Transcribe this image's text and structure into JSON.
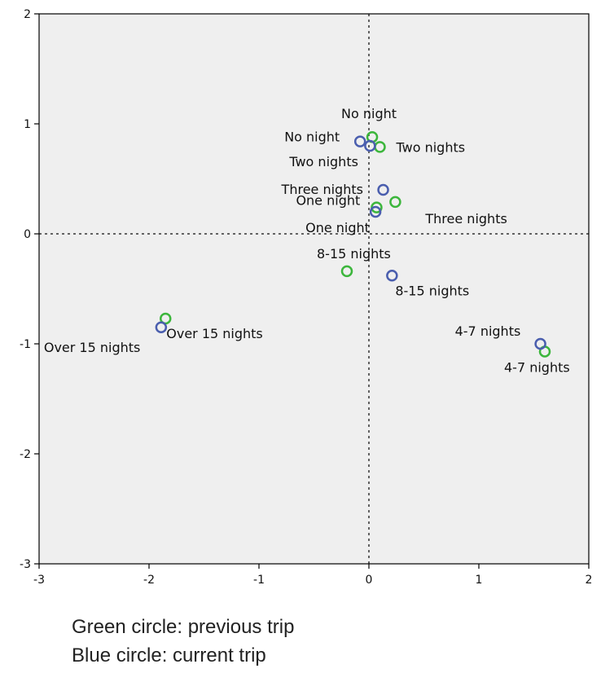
{
  "chart_data": {
    "type": "scatter",
    "title": "",
    "xlabel": "",
    "ylabel": "",
    "xlim": [
      -3,
      2
    ],
    "ylim": [
      -3,
      2
    ],
    "x_ticks": [
      -3,
      -2,
      -1,
      0,
      1,
      2
    ],
    "y_ticks": [
      -3,
      -2,
      -1,
      0,
      1,
      2
    ],
    "grid": false,
    "reference_lines": {
      "x": 0,
      "y": 0,
      "style": "dotted"
    },
    "colors": {
      "plot_background": "#efefef",
      "axis": "#000000",
      "green": "#3cb63c",
      "blue": "#4a5eae"
    },
    "series": [
      {
        "color": "#3cb63c",
        "marker": "open-circle",
        "points": [
          {
            "x": 0.03,
            "y": 0.88,
            "label": "No night"
          },
          {
            "x": 0.1,
            "y": 0.79,
            "label": "Two nights"
          },
          {
            "x": 0.24,
            "y": 0.29,
            "label": "Three nights"
          },
          {
            "x": 0.07,
            "y": 0.24,
            "label": "One night"
          },
          {
            "x": -0.2,
            "y": -0.34,
            "label": "8-15 nights"
          },
          {
            "x": 1.6,
            "y": -1.07,
            "label": "4-7 nights"
          },
          {
            "x": -1.85,
            "y": -0.77,
            "label": "Over 15 nights"
          }
        ]
      },
      {
        "color": "#4a5eae",
        "marker": "open-circle",
        "points": [
          {
            "x": -0.08,
            "y": 0.84,
            "label": "No night"
          },
          {
            "x": 0.01,
            "y": 0.8,
            "label": "Two nights"
          },
          {
            "x": 0.13,
            "y": 0.4,
            "label": "Three nights"
          },
          {
            "x": 0.06,
            "y": 0.2,
            "label": "One night"
          },
          {
            "x": 0.21,
            "y": -0.38,
            "label": "8-15 nights"
          },
          {
            "x": 1.56,
            "y": -1.0,
            "label": "4-7 nights"
          },
          {
            "x": -1.89,
            "y": -0.85,
            "label": "Over 15 nights"
          }
        ]
      }
    ]
  },
  "legend": {
    "green": "Green circle: previous trip",
    "blue": "Blue circle: current trip"
  }
}
